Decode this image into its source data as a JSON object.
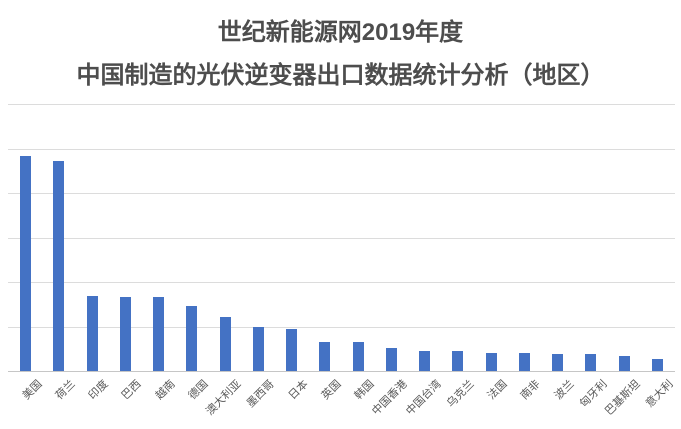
{
  "title": {
    "line1": "世纪新能源网2019年度",
    "line2": "中国制造的光伏逆变器出口数据统计分析（地区）"
  },
  "chart_data": {
    "type": "bar",
    "title": "世纪新能源网2019年度 中国制造的光伏逆变器出口数据统计分析（地区）",
    "categories": [
      "美国",
      "荷兰",
      "印度",
      "巴西",
      "越南",
      "德国",
      "澳大利亚",
      "墨西哥",
      "日本",
      "英国",
      "韩国",
      "中国香港",
      "中国台湾",
      "乌克兰",
      "法国",
      "南非",
      "波兰",
      "匈牙利",
      "巴基斯坦",
      "意大利"
    ],
    "values": [
      484,
      473,
      169,
      167,
      167,
      145,
      121,
      100,
      94,
      66,
      66,
      51,
      46,
      45,
      41,
      40,
      39,
      39,
      33,
      27
    ],
    "xlabel": "",
    "ylabel": "",
    "ylim": [
      0,
      600
    ],
    "gridline_step": 100,
    "y_tick_labels_visible": false,
    "x_tick_label_rotation_deg": 45,
    "legend": "none",
    "grid": "horizontal",
    "bar_color": "#4472c4"
  },
  "colors": {
    "background": "#ffffff",
    "bar": "#4472c4",
    "gridline": "#dcdcdc",
    "axis_line": "#c6c6c6",
    "title_text": "#4d4d4d",
    "axis_label_text": "#595959"
  }
}
